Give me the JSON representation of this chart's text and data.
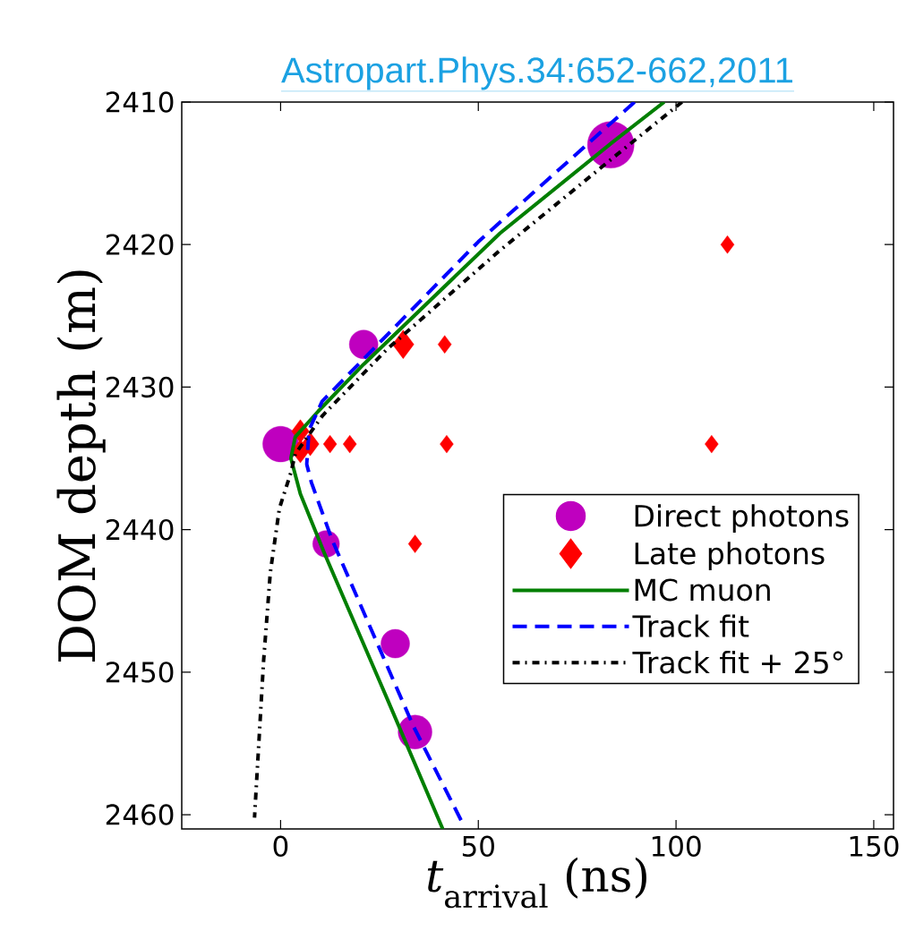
{
  "chart_data": {
    "type": "line",
    "title": "Astropart.Phys.34:652-662,2011",
    "xlabel": "*t*$_{arrival}$ (ns)",
    "ylabel": "DOM depth (m)",
    "xlim": [
      -25,
      155
    ],
    "ylim": [
      2461,
      2410
    ],
    "xticks": [
      0,
      50,
      100,
      150
    ],
    "yticks": [
      2410,
      2420,
      2430,
      2440,
      2450,
      2460
    ],
    "legend": "right",
    "series": [
      {
        "name": "Direct photons",
        "type": "bubble",
        "marker": "circle",
        "color": "#bf00bf",
        "x": [
          83.5,
          21,
          0,
          11.5,
          29,
          34
        ],
        "values": [
          2413,
          2427,
          2434,
          2441,
          2448,
          2454.2
        ],
        "sizes": [
          1,
          0.38,
          0.59,
          0.33,
          0.38,
          0.53
        ]
      },
      {
        "name": "Late photons",
        "type": "bubble",
        "marker": "diamond",
        "color": "#ff0000",
        "x": [
          113,
          31,
          41.5,
          5,
          5,
          7.5,
          12.5,
          17.5,
          42,
          109,
          34
        ],
        "values": [
          2420,
          2427,
          2427,
          2433.1,
          2434.5,
          2434,
          2434,
          2434,
          2434,
          2434,
          2441
        ],
        "sizes": [
          0.094,
          0.24,
          0.094,
          0.16,
          0.16,
          0.16,
          0.094,
          0.094,
          0.094,
          0.094,
          0.094
        ]
      },
      {
        "name": "MC muon",
        "marker": "none",
        "line_style": "solid",
        "color": "#007f00",
        "x": [
          97,
          84,
          55.5,
          21,
          9.5,
          3.7,
          2.6,
          5,
          11,
          27,
          41
        ],
        "values": [
          2410,
          2412.8,
          2419.2,
          2428.4,
          2431.7,
          2433.5,
          2435,
          2437.5,
          2441.6,
          2451.9,
          2461
        ]
      },
      {
        "name": "Track fit",
        "marker": "none",
        "line_style": "dashed",
        "color": "#0000ff",
        "x": [
          89.5,
          50,
          10.5,
          7.2,
          6.6,
          7.8,
          13,
          33.6,
          46.2
        ],
        "values": [
          2410,
          2419.8,
          2431,
          2433,
          2435.4,
          2436.7,
          2440.7,
          2453.8,
          2460.7
        ]
      },
      {
        "name": "Track fit + 25°",
        "marker": "none",
        "line_style": "dotted",
        "color": "#000000",
        "x": [
          101.5,
          85,
          55.5,
          26.7,
          10.6,
          3.7,
          2.6,
          -0.3,
          -2.6,
          -4.3,
          -6.6
        ],
        "values": [
          2410,
          2413.7,
          2420.4,
          2427.4,
          2432,
          2434.7,
          2436,
          2438.5,
          2443,
          2449.2,
          2460.2
        ]
      }
    ]
  }
}
